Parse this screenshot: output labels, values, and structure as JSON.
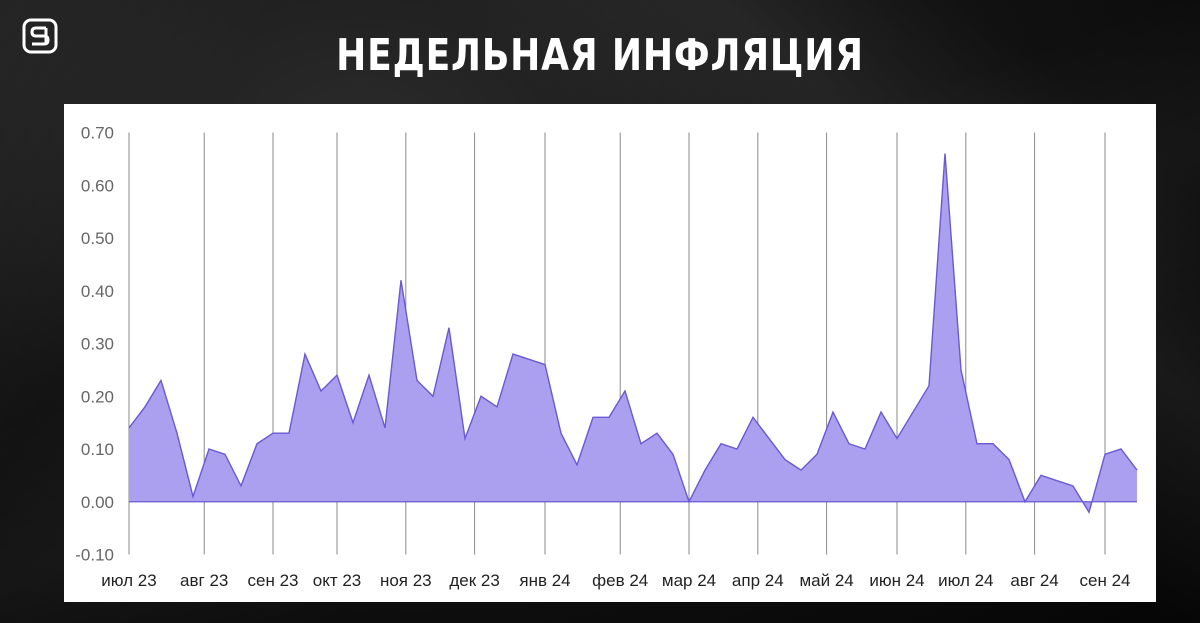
{
  "title": "НЕДЕЛЬНАЯ ИНФЛЯЦИЯ",
  "colors": {
    "area_fill": "#ab9ff0",
    "area_stroke": "#6a59d0",
    "grid": "#8a8a8a",
    "tick_text": "#666666"
  },
  "chart_data": {
    "type": "area",
    "y_ticks": [
      "0.70",
      "0.60",
      "0.50",
      "0.40",
      "0.30",
      "0.20",
      "0.10",
      "0.00",
      "-0.10"
    ],
    "ylim": [
      -0.1,
      0.7
    ],
    "months": [
      "июл 23",
      "авг 23",
      "сен 23",
      "окт 23",
      "ноя 23",
      "дек 23",
      "янв 24",
      "фев 24",
      "мар 24",
      "апр 24",
      "май 24",
      "июн 24",
      "июл 24",
      "авг 24",
      "сен 24"
    ],
    "month_week_index": [
      0,
      4.7,
      9,
      13,
      17.3,
      21.6,
      26,
      30.7,
      35,
      39.3,
      43.6,
      48,
      52.3,
      56.6,
      61
    ],
    "grid": "vertical-month-lines",
    "weekly_values": [
      0.14,
      0.18,
      0.23,
      0.13,
      0.01,
      0.1,
      0.09,
      0.03,
      0.11,
      0.13,
      0.13,
      0.28,
      0.21,
      0.24,
      0.15,
      0.24,
      0.14,
      0.42,
      0.23,
      0.2,
      0.33,
      0.12,
      0.2,
      0.18,
      0.28,
      0.27,
      0.26,
      0.13,
      0.07,
      0.16,
      0.16,
      0.21,
      0.11,
      0.13,
      0.09,
      0.0,
      0.06,
      0.11,
      0.1,
      0.16,
      0.12,
      0.08,
      0.06,
      0.09,
      0.17,
      0.11,
      0.1,
      0.17,
      0.12,
      0.17,
      0.22,
      0.66,
      0.25,
      0.11,
      0.11,
      0.08,
      0.0,
      0.05,
      0.04,
      0.03,
      -0.02,
      0.09,
      0.1,
      0.06
    ]
  }
}
